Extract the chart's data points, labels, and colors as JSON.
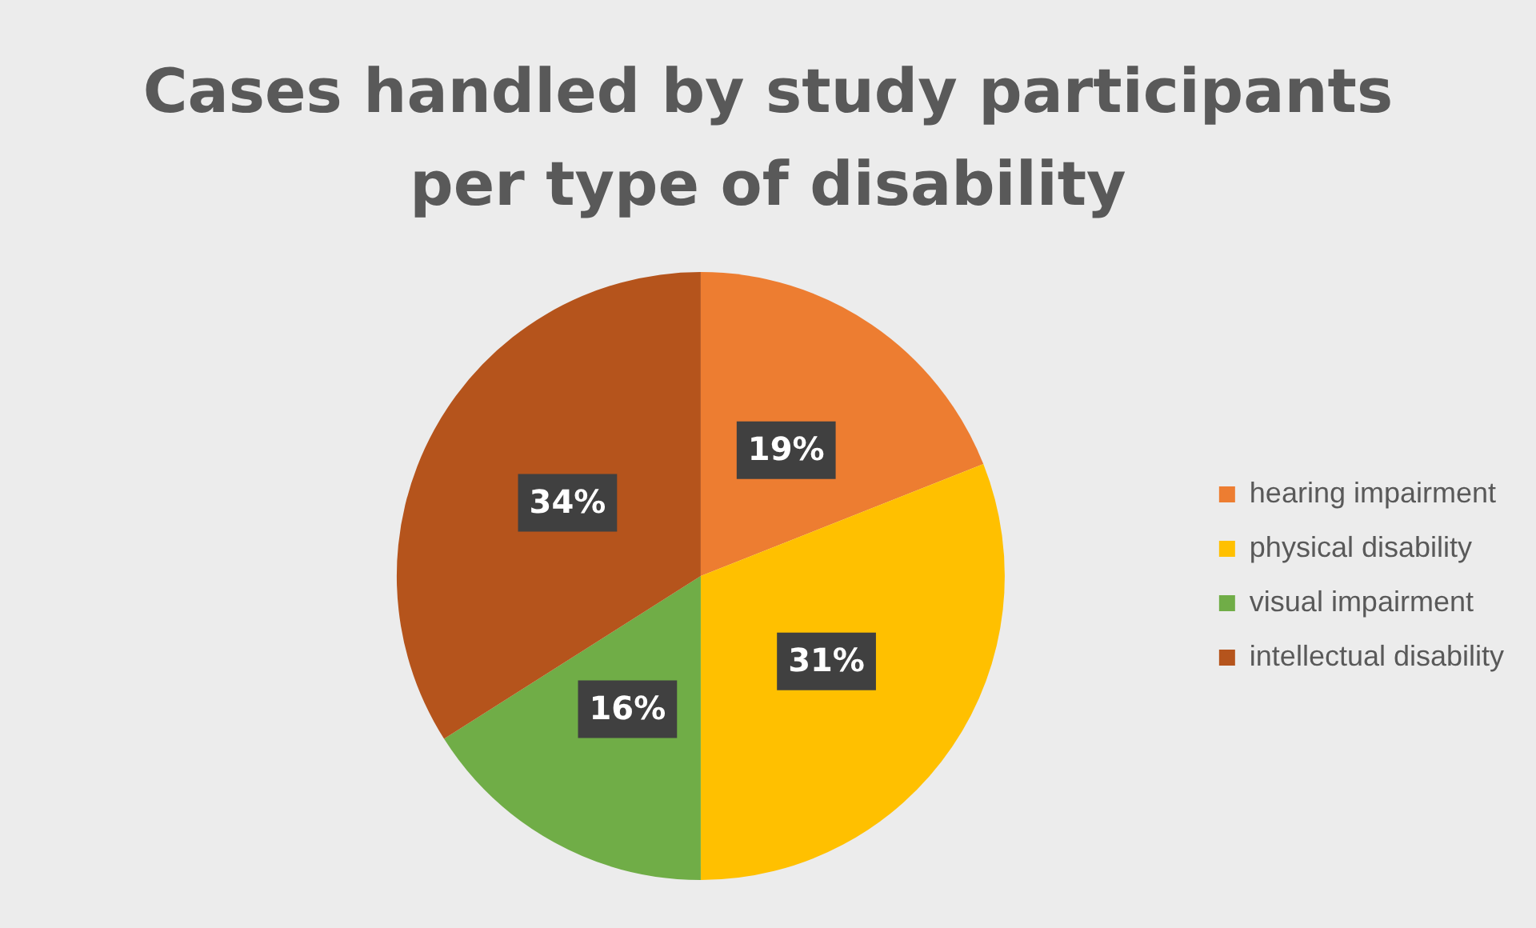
{
  "chart_data": {
    "type": "pie",
    "title": "Cases handled by study participants per type of disability",
    "categories": [
      "hearing impairment",
      "physical disability",
      "visual impairment",
      "intellectual disability"
    ],
    "values": [
      19,
      31,
      16,
      34
    ],
    "colors": [
      "#ed7d31",
      "#ffc000",
      "#70ad47",
      "#b5541c"
    ],
    "value_labels": [
      "19%",
      "31%",
      "16%",
      "34%"
    ],
    "legend": "right"
  }
}
